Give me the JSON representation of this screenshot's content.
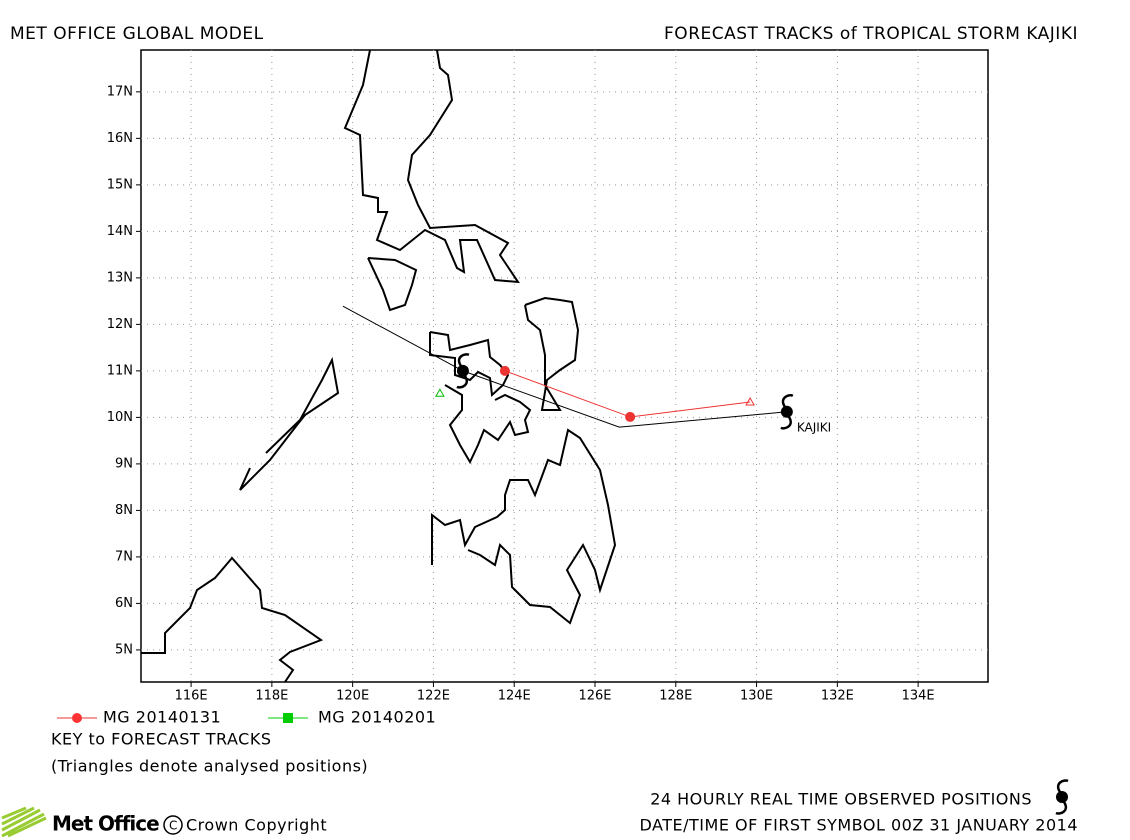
{
  "header": {
    "left": "MET OFFICE GLOBAL MODEL",
    "right": "FORECAST TRACKS of TROPICAL STORM KAJIKI"
  },
  "map": {
    "xlim": [
      114.76,
      135.73
    ],
    "ylim": [
      4.31,
      17.9
    ],
    "xticks": [
      {
        "value": 116,
        "label": "116E"
      },
      {
        "value": 118,
        "label": "118E"
      },
      {
        "value": 120,
        "label": "120E"
      },
      {
        "value": 122,
        "label": "122E"
      },
      {
        "value": 124,
        "label": "124E"
      },
      {
        "value": 126,
        "label": "126E"
      },
      {
        "value": 128,
        "label": "128E"
      },
      {
        "value": 130,
        "label": "130E"
      },
      {
        "value": 132,
        "label": "132E"
      },
      {
        "value": 134,
        "label": "134E"
      }
    ],
    "yticks": [
      {
        "value": 5,
        "label": "5N"
      },
      {
        "value": 6,
        "label": "6N"
      },
      {
        "value": 7,
        "label": "7N"
      },
      {
        "value": 8,
        "label": "8N"
      },
      {
        "value": 9,
        "label": "9N"
      },
      {
        "value": 10,
        "label": "10N"
      },
      {
        "value": 11,
        "label": "11N"
      },
      {
        "value": 12,
        "label": "12N"
      },
      {
        "value": 13,
        "label": "13N"
      },
      {
        "value": 14,
        "label": "14N"
      },
      {
        "value": 15,
        "label": "15N"
      },
      {
        "value": 16,
        "label": "16N"
      },
      {
        "value": 17,
        "label": "17N"
      }
    ],
    "grid": true,
    "observed": {
      "color": "#000000",
      "lon": [
        119.76,
        122.73,
        126.6,
        130.75
      ],
      "lat": [
        12.39,
        11.0,
        9.79,
        10.12
      ]
    },
    "observed_positions": {
      "lon": [
        122.73,
        130.75
      ],
      "lat": [
        11.0,
        10.12
      ]
    },
    "storm_label": {
      "text": "KAJIKI",
      "lon": 130.75,
      "lat": 10.12
    },
    "forecasts": [
      {
        "name": "MG 20140131",
        "color": "#ee3333",
        "lon": [
          123.77,
          126.87,
          129.84
        ],
        "lat": [
          11.0,
          10.01,
          10.33
        ]
      },
      {
        "name": "MG 20140201",
        "color": "#00bb00",
        "lon": [
          122.16
        ],
        "lat": [
          10.52
        ]
      }
    ]
  },
  "legend": [
    {
      "name": "MG 20140131"
    },
    {
      "name": "MG 20140201"
    }
  ],
  "legend_title": "KEY to FORECAST TRACKS",
  "legend_note": "(Triangles denote analysed positions)",
  "footer": {
    "observed_note": "24 HOURLY REAL TIME OBSERVED POSITIONS",
    "brand": "Met Office",
    "copyright": "Crown Copyright",
    "date_time": "DATE/TIME OF FIRST SYMBOL 00Z 31 JANUARY 2014"
  }
}
